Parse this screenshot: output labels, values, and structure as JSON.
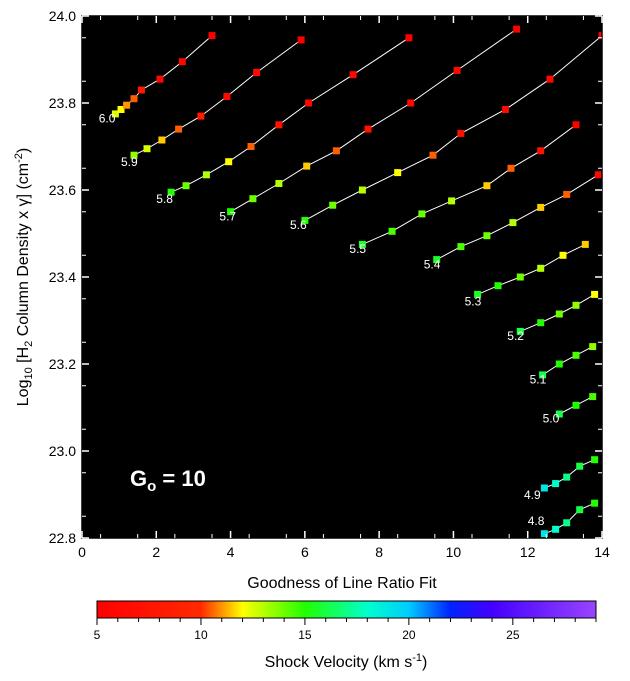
{
  "chart_data": {
    "type": "scatter",
    "title": "",
    "xlabel": "Goodness of Line Ratio Fit",
    "ylabel_parts": [
      "Log",
      "10",
      " [H",
      "2",
      " Column Density x γ] (cm",
      "-2",
      ")"
    ],
    "xlim": [
      0,
      14
    ],
    "ylim": [
      22.8,
      24.0
    ],
    "x_ticks": [
      0,
      2,
      4,
      6,
      8,
      10,
      12,
      14
    ],
    "y_ticks": [
      22.8,
      23.0,
      23.2,
      23.4,
      23.6,
      23.8,
      24.0
    ],
    "y_tick_labels": [
      "22.8",
      "23.0",
      "23.2",
      "23.4",
      "23.6",
      "23.8",
      "24.0"
    ],
    "background": "#000000",
    "annotation": {
      "main": "G",
      "sub": "o",
      "rest": " = 10"
    },
    "colorbar": {
      "label_parts": [
        "Shock Velocity (km s",
        "-1",
        ")"
      ],
      "min": 5,
      "max": 29,
      "ticks": [
        5,
        10,
        15,
        20,
        25
      ],
      "stops": [
        {
          "v": 5,
          "color": "#ff0000"
        },
        {
          "v": 10,
          "color": "#ff2a00"
        },
        {
          "v": 12,
          "color": "#ffff00"
        },
        {
          "v": 15,
          "color": "#22ff00"
        },
        {
          "v": 18,
          "color": "#00ffcc"
        },
        {
          "v": 20,
          "color": "#00ccff"
        },
        {
          "v": 22,
          "color": "#0022ff"
        },
        {
          "v": 24,
          "color": "#4400ff"
        },
        {
          "v": 29,
          "color": "#9944ff"
        }
      ]
    },
    "series": [
      {
        "name": "6.0",
        "points": [
          [
            0.9,
            23.775,
            12.5
          ],
          [
            1.05,
            23.785,
            12
          ],
          [
            1.2,
            23.795,
            11
          ],
          [
            1.4,
            23.81,
            10.5
          ],
          [
            1.6,
            23.83,
            8
          ],
          [
            2.1,
            23.855,
            6
          ],
          [
            2.7,
            23.895,
            6
          ],
          [
            3.5,
            23.955,
            5
          ]
        ]
      },
      {
        "name": "5.9",
        "points": [
          [
            1.4,
            23.68,
            13.5
          ],
          [
            1.75,
            23.695,
            12.5
          ],
          [
            2.15,
            23.715,
            11.5
          ],
          [
            2.6,
            23.74,
            10.5
          ],
          [
            3.2,
            23.77,
            8
          ],
          [
            3.9,
            23.815,
            6
          ],
          [
            4.7,
            23.87,
            6
          ],
          [
            5.9,
            23.945,
            5
          ]
        ]
      },
      {
        "name": "5.8",
        "points": [
          [
            2.4,
            23.595,
            15
          ],
          [
            2.8,
            23.61,
            14
          ],
          [
            3.35,
            23.635,
            13
          ],
          [
            3.95,
            23.665,
            12
          ],
          [
            4.55,
            23.7,
            10.5
          ],
          [
            5.3,
            23.75,
            7
          ],
          [
            6.1,
            23.8,
            6
          ],
          [
            7.3,
            23.865,
            6
          ],
          [
            8.8,
            23.95,
            5
          ]
        ]
      },
      {
        "name": "5.7",
        "points": [
          [
            4.0,
            23.55,
            15
          ],
          [
            4.6,
            23.58,
            14
          ],
          [
            5.3,
            23.615,
            13
          ],
          [
            6.05,
            23.655,
            11.5
          ],
          [
            6.85,
            23.69,
            10.5
          ],
          [
            7.7,
            23.74,
            7
          ],
          [
            8.85,
            23.8,
            6
          ],
          [
            10.1,
            23.875,
            6
          ],
          [
            11.7,
            23.97,
            5
          ]
        ]
      },
      {
        "name": "5.6",
        "points": [
          [
            6.0,
            23.53,
            15
          ],
          [
            6.75,
            23.565,
            14
          ],
          [
            7.55,
            23.6,
            13
          ],
          [
            8.5,
            23.64,
            12
          ],
          [
            9.45,
            23.68,
            10.5
          ],
          [
            10.2,
            23.73,
            7
          ],
          [
            11.4,
            23.785,
            6
          ],
          [
            12.6,
            23.855,
            6
          ],
          [
            14.0,
            23.955,
            5
          ]
        ]
      },
      {
        "name": "5.5",
        "points": [
          [
            7.55,
            23.475,
            15.5
          ],
          [
            8.35,
            23.505,
            14.5
          ],
          [
            9.15,
            23.545,
            14
          ],
          [
            9.95,
            23.575,
            13
          ],
          [
            10.9,
            23.61,
            11.5
          ],
          [
            11.55,
            23.65,
            10.5
          ],
          [
            12.35,
            23.69,
            7
          ],
          [
            13.3,
            23.75,
            5
          ]
        ]
      },
      {
        "name": "5.4",
        "points": [
          [
            9.55,
            23.44,
            15.5
          ],
          [
            10.2,
            23.47,
            14.5
          ],
          [
            10.9,
            23.495,
            14
          ],
          [
            11.6,
            23.525,
            13
          ],
          [
            12.35,
            23.56,
            11.5
          ],
          [
            13.05,
            23.59,
            10.5
          ],
          [
            13.9,
            23.635,
            6
          ]
        ]
      },
      {
        "name": "5.3",
        "points": [
          [
            10.65,
            23.36,
            15.5
          ],
          [
            11.2,
            23.38,
            15
          ],
          [
            11.8,
            23.4,
            14
          ],
          [
            12.35,
            23.42,
            13
          ],
          [
            12.95,
            23.45,
            12
          ],
          [
            13.55,
            23.475,
            11.5
          ]
        ]
      },
      {
        "name": "5.2",
        "points": [
          [
            11.8,
            23.275,
            16
          ],
          [
            12.35,
            23.295,
            15
          ],
          [
            12.85,
            23.315,
            14
          ],
          [
            13.3,
            23.335,
            13.5
          ],
          [
            13.8,
            23.36,
            12
          ]
        ]
      },
      {
        "name": "5.1",
        "points": [
          [
            12.4,
            23.175,
            16
          ],
          [
            12.85,
            23.2,
            15
          ],
          [
            13.3,
            23.22,
            14.5
          ],
          [
            13.75,
            23.24,
            13.5
          ]
        ]
      },
      {
        "name": "5.0",
        "points": [
          [
            12.85,
            23.085,
            16
          ],
          [
            13.3,
            23.105,
            15
          ],
          [
            13.75,
            23.125,
            14.5
          ]
        ]
      },
      {
        "name": "4.9",
        "points": [
          [
            12.45,
            22.915,
            19
          ],
          [
            12.75,
            22.925,
            18
          ],
          [
            13.05,
            22.94,
            17
          ],
          [
            13.4,
            22.965,
            16
          ],
          [
            13.8,
            22.98,
            15
          ]
        ]
      },
      {
        "name": "4.8",
        "points": [
          [
            12.45,
            22.81,
            19
          ],
          [
            12.75,
            22.82,
            18
          ],
          [
            13.05,
            22.835,
            17
          ],
          [
            13.4,
            22.865,
            16
          ],
          [
            13.8,
            22.88,
            15
          ]
        ]
      }
    ],
    "series_labels": [
      {
        "text": "6.0",
        "x": 0.45,
        "y": 23.755
      },
      {
        "text": "5.9",
        "x": 1.05,
        "y": 23.655
      },
      {
        "text": "5.8",
        "x": 2.0,
        "y": 23.57
      },
      {
        "text": "5.7",
        "x": 3.7,
        "y": 23.53
      },
      {
        "text": "5.6",
        "x": 5.6,
        "y": 23.51
      },
      {
        "text": "5.5",
        "x": 7.2,
        "y": 23.455
      },
      {
        "text": "5.4",
        "x": 9.2,
        "y": 23.42
      },
      {
        "text": "5.3",
        "x": 10.3,
        "y": 23.335
      },
      {
        "text": "5.2",
        "x": 11.45,
        "y": 23.255
      },
      {
        "text": "5.1",
        "x": 12.05,
        "y": 23.155
      },
      {
        "text": "5.0",
        "x": 12.4,
        "y": 23.065
      },
      {
        "text": "4.9",
        "x": 11.9,
        "y": 22.89
      },
      {
        "text": "4.8",
        "x": 12.0,
        "y": 22.83
      }
    ]
  }
}
